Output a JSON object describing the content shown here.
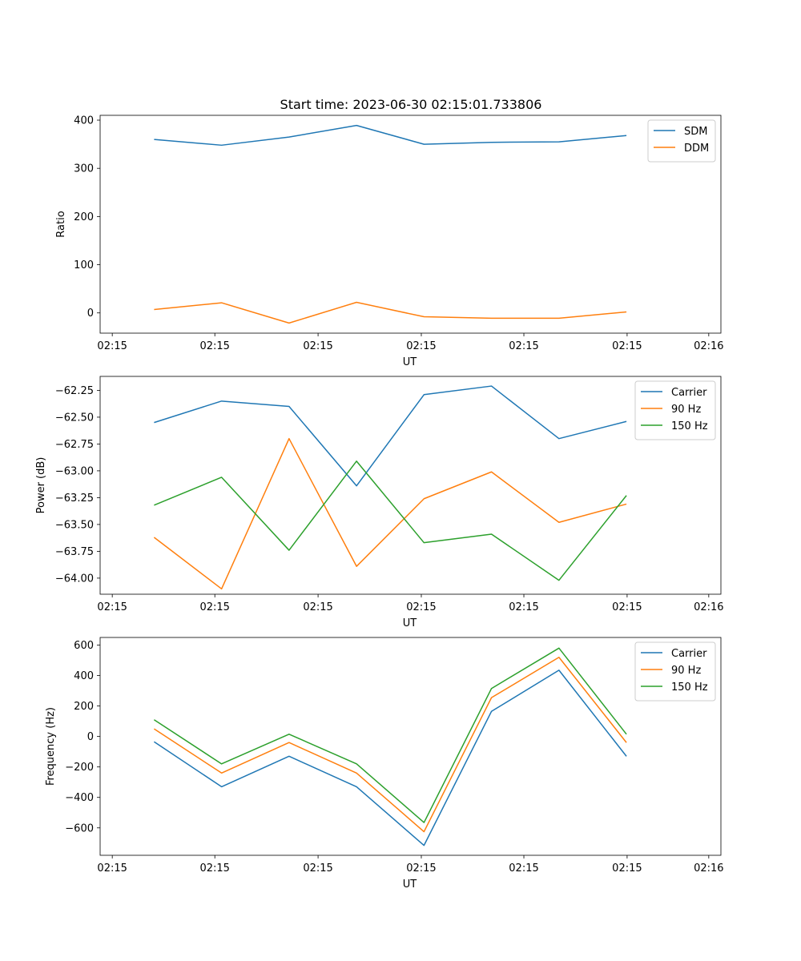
{
  "figure_title": "Start time: 2023-06-30 02:15:01.733806",
  "xlabel": "UT",
  "x_tick_labels": [
    "02:15",
    "02:15",
    "02:15",
    "02:15",
    "02:15",
    "02:15",
    "02:16"
  ],
  "colors": {
    "blue": "#1f77b4",
    "orange": "#ff7f0e",
    "green": "#2ca02c"
  },
  "chart_data": [
    {
      "type": "line",
      "title": "Start time: 2023-06-30 02:15:01.733806",
      "xlabel": "UT",
      "ylabel": "Ratio",
      "x": [
        1,
        2,
        3,
        4,
        5,
        6,
        7,
        8
      ],
      "xlim": [
        0.2,
        9.4
      ],
      "x_ticks": [
        0.38,
        1.9,
        3.43,
        4.96,
        6.48,
        8.01,
        9.22
      ],
      "x_tick_labels": [
        "02:15",
        "02:15",
        "02:15",
        "02:15",
        "02:15",
        "02:15",
        "02:16"
      ],
      "ylim": [
        -42,
        410
      ],
      "y_ticks": [
        0,
        100,
        200,
        300,
        400
      ],
      "y_tick_labels": [
        "0",
        "100",
        "200",
        "300",
        "400"
      ],
      "legend": "top-right",
      "grid": false,
      "series": [
        {
          "name": "SDM",
          "color": "#1f77b4",
          "values": [
            360,
            348,
            365,
            389,
            350,
            354,
            355,
            368
          ]
        },
        {
          "name": "DDM",
          "color": "#ff7f0e",
          "values": [
            7,
            21,
            -21,
            22,
            -8,
            -11,
            -11,
            2
          ]
        }
      ]
    },
    {
      "type": "line",
      "xlabel": "UT",
      "ylabel": "Power (dB)",
      "x": [
        1,
        2,
        3,
        4,
        5,
        6,
        7,
        8
      ],
      "xlim": [
        0.2,
        9.4
      ],
      "x_ticks": [
        0.38,
        1.9,
        3.43,
        4.96,
        6.48,
        8.01,
        9.22
      ],
      "x_tick_labels": [
        "02:15",
        "02:15",
        "02:15",
        "02:15",
        "02:15",
        "02:15",
        "02:16"
      ],
      "ylim": [
        -64.15,
        -62.12
      ],
      "y_ticks": [
        -64.0,
        -63.75,
        -63.5,
        -63.25,
        -63.0,
        -62.75,
        -62.5,
        -62.25
      ],
      "y_tick_labels": [
        "−64.00",
        "−63.75",
        "−63.50",
        "−63.25",
        "−63.00",
        "−62.75",
        "−62.50",
        "−62.25"
      ],
      "legend": "top-right",
      "grid": false,
      "series": [
        {
          "name": "Carrier",
          "color": "#1f77b4",
          "values": [
            -62.55,
            -62.35,
            -62.4,
            -63.14,
            -62.29,
            -62.21,
            -62.7,
            -62.54
          ]
        },
        {
          "name": "90 Hz",
          "color": "#ff7f0e",
          "values": [
            -63.62,
            -64.1,
            -62.7,
            -63.89,
            -63.26,
            -63.01,
            -63.48,
            -63.31
          ]
        },
        {
          "name": "150 Hz",
          "color": "#2ca02c",
          "values": [
            -63.32,
            -63.06,
            -63.74,
            -62.91,
            -63.67,
            -63.59,
            -64.02,
            -63.23
          ]
        }
      ]
    },
    {
      "type": "line",
      "xlabel": "UT",
      "ylabel": "Frequency (Hz)",
      "x": [
        1,
        2,
        3,
        4,
        5,
        6,
        7,
        8
      ],
      "xlim": [
        0.2,
        9.4
      ],
      "x_ticks": [
        0.38,
        1.9,
        3.43,
        4.96,
        6.48,
        8.01,
        9.22
      ],
      "x_tick_labels": [
        "02:15",
        "02:15",
        "02:15",
        "02:15",
        "02:15",
        "02:15",
        "02:16"
      ],
      "ylim": [
        -780,
        650
      ],
      "y_ticks": [
        -600,
        -400,
        -200,
        0,
        200,
        400,
        600
      ],
      "y_tick_labels": [
        "−600",
        "−400",
        "−200",
        "0",
        "200",
        "400",
        "600"
      ],
      "legend": "top-right",
      "grid": false,
      "series": [
        {
          "name": "Carrier",
          "color": "#1f77b4",
          "values": [
            -35,
            -330,
            -130,
            -330,
            -715,
            165,
            435,
            -130
          ]
        },
        {
          "name": "90 Hz",
          "color": "#ff7f0e",
          "values": [
            50,
            -240,
            -40,
            -240,
            -625,
            255,
            520,
            -40
          ]
        },
        {
          "name": "150 Hz",
          "color": "#2ca02c",
          "values": [
            110,
            -180,
            15,
            -180,
            -565,
            315,
            580,
            15
          ]
        }
      ]
    }
  ]
}
